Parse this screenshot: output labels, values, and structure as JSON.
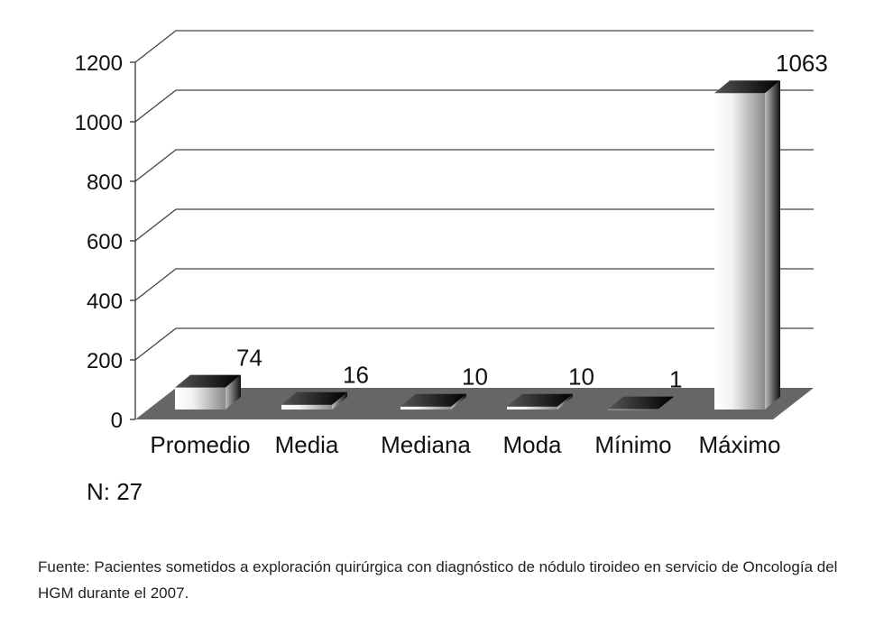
{
  "chart_data": {
    "type": "bar",
    "categories": [
      "Promedio",
      "Media",
      "Mediana",
      "Moda",
      "Mínimo",
      "Máximo"
    ],
    "values": [
      74,
      16,
      10,
      10,
      1,
      1063
    ],
    "value_labels": [
      "74",
      "16",
      "10",
      "10",
      "1",
      "1063"
    ],
    "yticks": [
      "0",
      "200",
      "400",
      "600",
      "800",
      "1000",
      "1200"
    ],
    "ylim": [
      0,
      1200
    ],
    "title": "",
    "xlabel": "",
    "ylabel": "",
    "grid": true,
    "legend": "none",
    "style": "3d",
    "colors": {
      "bar_light": "#ffffff",
      "bar_mid": "#9a9a9a",
      "bar_dark": "#111111",
      "floor": "#666666",
      "grid": "#444444"
    }
  },
  "note": "N: 27",
  "source": "Fuente: Pacientes sometidos a exploración quirúrgica con diagnóstico de nódulo tiroideo en servicio de Oncología del HGM durante el 2007."
}
